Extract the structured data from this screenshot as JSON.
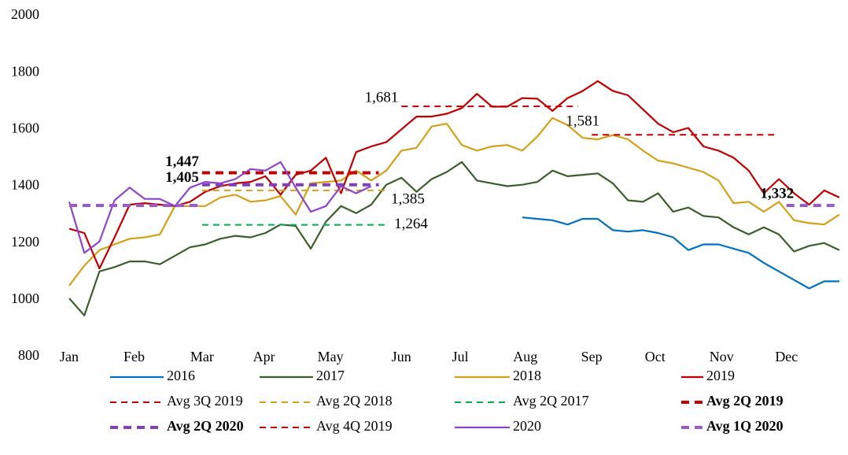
{
  "chart_data": {
    "type": "line",
    "xlim": [
      0,
      51
    ],
    "xticks": [
      {
        "value": 0,
        "label": "Jan"
      },
      {
        "value": 4.3,
        "label": "Feb"
      },
      {
        "value": 8.8,
        "label": "Mar"
      },
      {
        "value": 12.9,
        "label": "Apr"
      },
      {
        "value": 17.3,
        "label": "May"
      },
      {
        "value": 22,
        "label": "Jun"
      },
      {
        "value": 25.9,
        "label": "Jul"
      },
      {
        "value": 30.2,
        "label": "Aug"
      },
      {
        "value": 34.6,
        "label": "Sep"
      },
      {
        "value": 38.8,
        "label": "Oct"
      },
      {
        "value": 43.2,
        "label": "Nov"
      },
      {
        "value": 47.5,
        "label": "Dec"
      }
    ],
    "ylim": [
      800,
      2000
    ],
    "yticks": [
      800,
      1000,
      1200,
      1400,
      1600,
      1800,
      2000
    ],
    "grid": false,
    "legend": "bottom",
    "series": [
      {
        "name": "2016",
        "color": "#0070c0",
        "values": [
          null,
          null,
          null,
          null,
          null,
          null,
          null,
          null,
          null,
          null,
          null,
          null,
          null,
          null,
          null,
          null,
          null,
          null,
          null,
          null,
          null,
          null,
          null,
          null,
          null,
          null,
          null,
          null,
          null,
          null,
          1290,
          1285,
          1280,
          1265,
          1285,
          1285,
          1245,
          1240,
          1245,
          1235,
          1220,
          1175,
          1195,
          1195,
          1180,
          1165,
          1130,
          1100,
          1070,
          1040,
          1065,
          1065
        ]
      },
      {
        "name": "2017",
        "color": "#3b5e2b",
        "values": [
          1005,
          945,
          1100,
          1115,
          1135,
          1135,
          1125,
          1155,
          1185,
          1195,
          1215,
          1225,
          1220,
          1235,
          1265,
          1260,
          1180,
          1275,
          1330,
          1305,
          1335,
          1405,
          1430,
          1380,
          1425,
          1450,
          1485,
          1420,
          1410,
          1400,
          1405,
          1415,
          1455,
          1435,
          1440,
          1445,
          1410,
          1350,
          1345,
          1375,
          1310,
          1325,
          1295,
          1290,
          1255,
          1230,
          1255,
          1230,
          1170,
          1190,
          1200,
          1175
        ]
      },
      {
        "name": "2018",
        "color": "#d4a017",
        "values": [
          1050,
          1120,
          1175,
          1195,
          1215,
          1220,
          1230,
          1330,
          1330,
          1330,
          1360,
          1370,
          1345,
          1350,
          1365,
          1300,
          1410,
          1415,
          1420,
          1455,
          1420,
          1455,
          1525,
          1535,
          1610,
          1620,
          1545,
          1525,
          1540,
          1545,
          1525,
          1575,
          1640,
          1615,
          1570,
          1565,
          1580,
          1565,
          1525,
          1490,
          1480,
          1465,
          1450,
          1420,
          1340,
          1345,
          1310,
          1345,
          1280,
          1270,
          1265,
          1300
        ]
      },
      {
        "name": "2019",
        "color": "#c00000",
        "values": [
          1250,
          1235,
          1110,
          1220,
          1335,
          1340,
          1335,
          1330,
          1345,
          1380,
          1400,
          1410,
          1415,
          1435,
          1370,
          1440,
          1455,
          1500,
          1375,
          1520,
          1540,
          1555,
          1600,
          1645,
          1645,
          1655,
          1675,
          1725,
          1680,
          1680,
          1710,
          1708,
          1665,
          1710,
          1735,
          1770,
          1735,
          1720,
          1670,
          1620,
          1590,
          1605,
          1540,
          1525,
          1500,
          1455,
          1375,
          1425,
          1375,
          1335,
          1385,
          1360
        ]
      },
      {
        "name": "Avg 3Q 2019",
        "color": "#c00000",
        "dashed": true,
        "bold": false,
        "x": [
          22,
          33.7
        ],
        "values": [
          1681,
          1681
        ],
        "value_labels": [
          "1,681",
          null
        ]
      },
      {
        "name": "Avg 2Q 2018",
        "color": "#d4a017",
        "dashed": true,
        "bold": false,
        "x": [
          8.8,
          21
        ],
        "values": [
          1385,
          1385
        ],
        "value_labels": [
          null,
          "1,385"
        ]
      },
      {
        "name": "Avg 2Q 2017",
        "color": "#00b050",
        "dashed": true,
        "bold": false,
        "x": [
          8.8,
          21
        ],
        "values": [
          1264,
          1264
        ],
        "value_labels": [
          null,
          "1,264"
        ]
      },
      {
        "name": "Avg 2Q 2019",
        "color": "#c00000",
        "dashed": true,
        "bold": true,
        "x": [
          8.8,
          20.5
        ],
        "values": [
          1447,
          1447
        ],
        "value_labels": [
          "1,447",
          null
        ]
      },
      {
        "name": "Avg 2Q 2020",
        "color": "#7f3fbf",
        "dashed": true,
        "bold": true,
        "x": [
          8.8,
          20.5
        ],
        "values": [
          1405,
          1405
        ],
        "value_labels": [
          "1,405",
          null
        ]
      },
      {
        "name": "Avg 4Q 2019",
        "color": "#c00000",
        "dashed": true,
        "bold": false,
        "x": [
          34.6,
          46.7
        ],
        "values": [
          1581,
          1581
        ],
        "value_labels": [
          "1,581",
          null
        ]
      },
      {
        "name": "2020",
        "color": "#8e44c8",
        "values": [
          1345,
          1165,
          1205,
          1350,
          1395,
          1355,
          1355,
          1330,
          1395,
          1415,
          1410,
          1425,
          1460,
          1455,
          1485,
          1395,
          1310,
          1330,
          1400,
          1375,
          1400,
          null,
          null,
          null,
          null,
          null,
          null,
          null,
          null,
          null,
          null,
          null,
          null,
          null,
          null,
          null,
          null,
          null,
          null,
          null,
          null,
          null,
          null,
          null,
          null,
          null,
          null,
          null,
          null,
          null,
          null,
          null
        ]
      },
      {
        "name": "Avg 1Q 2020",
        "color": "#9b59d0",
        "dashed": true,
        "bold": true,
        "x": [
          0,
          8.8,
          30,
          47.5,
          51
        ],
        "values": [
          1332,
          1332,
          null,
          1332,
          1332
        ],
        "value_labels": [
          null,
          null,
          null,
          "1,332",
          null
        ]
      }
    ]
  }
}
